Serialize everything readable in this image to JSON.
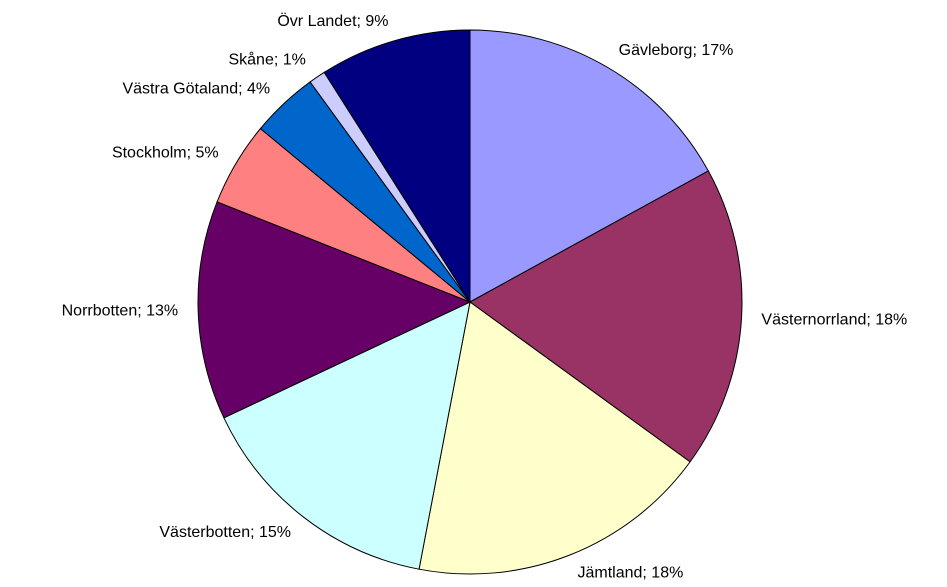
{
  "chart_data": {
    "type": "pie",
    "values": [
      17,
      18,
      18,
      15,
      13,
      5,
      4,
      1,
      9
    ],
    "value_labels": [
      "Gävleborg; 17%",
      "Västernorrland; 18%",
      "Jämtland; 18%",
      "Västerbotten; 15%",
      "Norrbotten; 13%",
      "Stockholm; 5%",
      "Västra Götaland; 4%",
      "Skåne; 1%",
      "Övr Landet; 9%"
    ],
    "colors": [
      "#9999ff",
      "#993366",
      "#ffffcc",
      "#ccffff",
      "#660066",
      "#ff8080",
      "#0066cc",
      "#ccccff",
      "#000080"
    ]
  }
}
